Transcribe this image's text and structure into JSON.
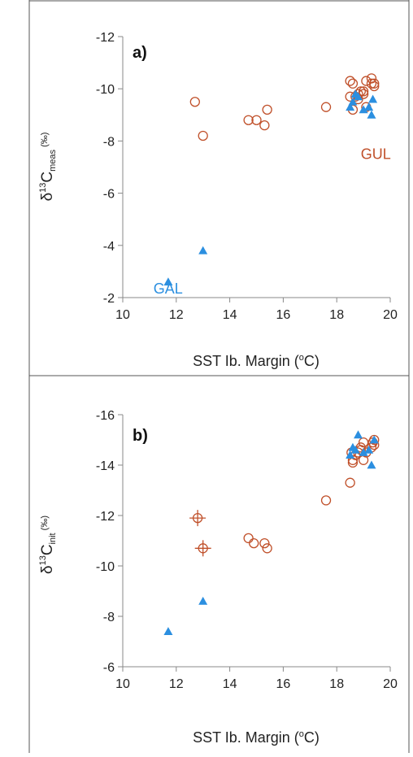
{
  "colors": {
    "gul": "#c0502a",
    "gal": "#2b8fe0",
    "axis": "#888888",
    "frame": "#555555"
  },
  "chart_data": [
    {
      "type": "scatter",
      "panel_label": "a)",
      "xlabel_main": "SST Ib. Margin (",
      "xlabel_sup": "o",
      "xlabel_end": "C)",
      "ylabel_delta": "δ",
      "ylabel_sup": "13",
      "ylabel_c": "C",
      "ylabel_sub": "meas",
      "ylabel_unit_sup": " (‰)",
      "xlim": [
        10,
        20
      ],
      "ylim": [
        -12,
        -2
      ],
      "y_inverted": true,
      "xticks": [
        "10",
        "12",
        "14",
        "16",
        "18",
        "20"
      ],
      "yticks": [
        "-12",
        "-10",
        "-8",
        "-6",
        "-4",
        "-2"
      ],
      "annotations": [
        {
          "text": "GUL",
          "x": 18.9,
          "y": -7.5,
          "series": "GUL"
        },
        {
          "text": "GAL",
          "x": 12.0,
          "y": -2.35,
          "series": "GAL"
        }
      ],
      "series": [
        {
          "name": "GUL",
          "marker": "open-circle",
          "x": [
            12.7,
            13.0,
            14.7,
            15.0,
            15.3,
            15.4,
            17.6,
            18.5,
            18.6,
            18.6,
            18.7,
            18.8,
            18.9,
            19.0,
            19.1,
            19.1,
            19.3,
            19.3,
            19.4,
            19.4,
            18.5,
            18.8,
            19.0
          ],
          "y": [
            -9.5,
            -8.2,
            -8.8,
            -8.8,
            -8.6,
            -9.2,
            -9.3,
            -10.3,
            -10.2,
            -9.2,
            -9.7,
            -9.8,
            -9.9,
            -9.8,
            -10.3,
            -9.3,
            -10.2,
            -10.4,
            -10.1,
            -10.2,
            -9.7,
            -9.6,
            -9.9
          ]
        },
        {
          "name": "GAL",
          "marker": "filled-triangle",
          "x": [
            11.7,
            13.0,
            18.5,
            18.6,
            18.7,
            18.8,
            19.0,
            19.2,
            19.3,
            19.35
          ],
          "y": [
            -2.6,
            -3.8,
            -9.3,
            -9.5,
            -9.8,
            -9.7,
            -9.2,
            -9.3,
            -9.0,
            -9.6
          ]
        }
      ]
    },
    {
      "type": "scatter",
      "panel_label": "b)",
      "xlabel_main": "SST Ib. Margin (",
      "xlabel_sup": "o",
      "xlabel_end": "C)",
      "ylabel_delta": "δ",
      "ylabel_sup": "13",
      "ylabel_c": "C",
      "ylabel_sub": "init",
      "ylabel_unit_sup": " (‰)",
      "xlim": [
        10,
        20
      ],
      "ylim": [
        -16,
        -6
      ],
      "y_inverted": true,
      "xticks": [
        "10",
        "12",
        "14",
        "16",
        "18",
        "20"
      ],
      "yticks": [
        "-16",
        "-14",
        "-12",
        "-10",
        "-8",
        "-6"
      ],
      "series": [
        {
          "name": "GUL",
          "marker": "open-circle",
          "x": [
            14.7,
            14.9,
            15.3,
            15.4,
            17.6,
            18.5,
            18.6,
            18.6,
            18.7,
            18.8,
            18.9,
            19.0,
            19.0,
            19.1,
            19.3,
            19.35,
            19.4,
            19.4,
            18.55,
            18.9
          ],
          "y": [
            -11.1,
            -10.9,
            -10.9,
            -10.7,
            -12.6,
            -13.3,
            -14.1,
            -14.2,
            -14.4,
            -14.5,
            -14.6,
            -14.2,
            -14.9,
            -14.5,
            -14.7,
            -14.9,
            -14.8,
            -15.0,
            -14.5,
            -14.7
          ]
        },
        {
          "name": "GUL (error bars)",
          "marker": "open-circle-cross",
          "x": [
            12.8,
            13.0
          ],
          "y": [
            -11.9,
            -10.7
          ]
        },
        {
          "name": "GAL",
          "marker": "filled-triangle",
          "x": [
            11.7,
            13.0,
            18.5,
            18.6,
            18.7,
            18.8,
            19.0,
            19.2,
            19.3,
            19.4
          ],
          "y": [
            -7.4,
            -8.6,
            -14.4,
            -14.7,
            -14.6,
            -15.2,
            -14.5,
            -14.6,
            -14.0,
            -15.0
          ]
        }
      ]
    }
  ]
}
